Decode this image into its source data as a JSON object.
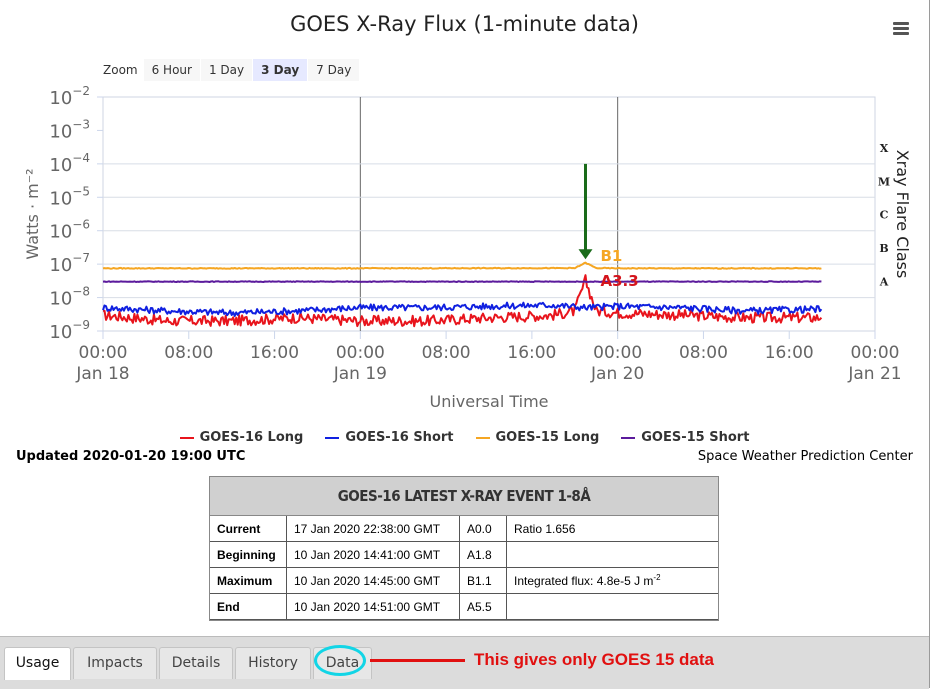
{
  "window": {
    "title": "GOES X-Ray Flux (1-minute data)"
  },
  "zoom": {
    "label": "Zoom",
    "options": [
      "6 Hour",
      "1 Day",
      "3 Day",
      "7 Day"
    ],
    "selected": "3 Day"
  },
  "chart_data": {
    "type": "line",
    "title": "GOES X-Ray Flux (1-minute data)",
    "xlabel": "Universal Time",
    "ylabel": "Watts · m⁻²",
    "ylabel_right": "Xray Flare Class",
    "y_scale": "log",
    "ylim": [
      1e-09,
      0.01
    ],
    "y_ticks": [
      {
        "base": "10",
        "exp": "−2"
      },
      {
        "base": "10",
        "exp": "−3"
      },
      {
        "base": "10",
        "exp": "−4"
      },
      {
        "base": "10",
        "exp": "−5"
      },
      {
        "base": "10",
        "exp": "−6"
      },
      {
        "base": "10",
        "exp": "−7"
      },
      {
        "base": "10",
        "exp": "−8"
      },
      {
        "base": "10",
        "exp": "−9"
      }
    ],
    "xlim": [
      "2020-01-18 00:00",
      "2020-01-21 00:00"
    ],
    "x_ticks": [
      {
        "time": "00:00",
        "date": "Jan 18"
      },
      {
        "time": "08:00",
        "date": ""
      },
      {
        "time": "16:00",
        "date": ""
      },
      {
        "time": "00:00",
        "date": "Jan 19"
      },
      {
        "time": "08:00",
        "date": ""
      },
      {
        "time": "16:00",
        "date": ""
      },
      {
        "time": "00:00",
        "date": "Jan 20"
      },
      {
        "time": "08:00",
        "date": ""
      },
      {
        "time": "16:00",
        "date": ""
      },
      {
        "time": "00:00",
        "date": "Jan 21"
      }
    ],
    "flare_classes": [
      "X",
      "M",
      "C",
      "B",
      "A"
    ],
    "grid": "day boundaries and flare class levels",
    "legend_position": "bottom",
    "data_end": "2020-01-20 19:00",
    "series": [
      {
        "name": "GOES-16 Long",
        "color": "#e8141c",
        "x": [
          "2020-01-18 00:00",
          "2020-01-18 06:00",
          "2020-01-18 12:00",
          "2020-01-18 18:00",
          "2020-01-19 00:00",
          "2020-01-19 06:00",
          "2020-01-19 12:00",
          "2020-01-19 18:00",
          "2020-01-19 20:00",
          "2020-01-19 21:00",
          "2020-01-19 22:00",
          "2020-01-20 00:00",
          "2020-01-20 06:00",
          "2020-01-20 12:00",
          "2020-01-20 19:00"
        ],
        "values": [
          3e-09,
          2e-09,
          2e-09,
          2.5e-09,
          2e-09,
          2e-09,
          2.5e-09,
          3e-09,
          4e-09,
          3.3e-08,
          4e-09,
          3.5e-09,
          3e-09,
          2.5e-09,
          2.5e-09
        ]
      },
      {
        "name": "GOES-16 Short",
        "color": "#1020e0",
        "x": [
          "2020-01-18 00:00",
          "2020-01-18 06:00",
          "2020-01-18 12:00",
          "2020-01-18 18:00",
          "2020-01-19 00:00",
          "2020-01-19 06:00",
          "2020-01-19 12:00",
          "2020-01-19 18:00",
          "2020-01-19 21:00",
          "2020-01-20 00:00",
          "2020-01-20 06:00",
          "2020-01-20 12:00",
          "2020-01-20 19:00"
        ],
        "values": [
          5e-09,
          4e-09,
          3.5e-09,
          4e-09,
          5e-09,
          5e-09,
          5.5e-09,
          6e-09,
          5e-09,
          5.5e-09,
          5e-09,
          4e-09,
          4.5e-09
        ]
      },
      {
        "name": "GOES-15 Long",
        "color": "#f5a623",
        "x": [
          "2020-01-18 00:00",
          "2020-01-19 00:00",
          "2020-01-19 20:00",
          "2020-01-19 21:00",
          "2020-01-19 22:00",
          "2020-01-20 00:00",
          "2020-01-20 19:00"
        ],
        "values": [
          7.5e-08,
          7.5e-08,
          7.6e-08,
          1.1e-07,
          7.6e-08,
          7.5e-08,
          7.5e-08
        ]
      },
      {
        "name": "GOES-15 Short",
        "color": "#5b1a9c",
        "x": [
          "2020-01-18 00:00",
          "2020-01-20 19:00"
        ],
        "values": [
          3e-08,
          3e-08
        ]
      }
    ],
    "annotations": [
      {
        "label": "B1",
        "color": "#f5a623",
        "x": "2020-01-19 21:00",
        "y": 1.1e-07
      },
      {
        "label": "A3.3",
        "color": "#d4141c",
        "x": "2020-01-19 21:00",
        "y": 3.3e-08
      }
    ],
    "arrow": {
      "color": "#1a6b1a",
      "x": "2020-01-19 21:00",
      "y_from": 0.0001,
      "y_to": 1.4e-07
    }
  },
  "status": {
    "updated": "Updated 2020-01-20 19:00 UTC",
    "credit": "Space Weather Prediction Center"
  },
  "event": {
    "title": "GOES-16 LATEST X-RAY EVENT 1-8Å",
    "rows": [
      {
        "label": "Current",
        "time": "17 Jan 2020 22:38:00 GMT",
        "class": "A0.0",
        "note": "Ratio 1.656",
        "note_sup": ""
      },
      {
        "label": "Beginning",
        "time": "10 Jan 2020 14:41:00 GMT",
        "class": "A1.8",
        "note": "",
        "note_sup": ""
      },
      {
        "label": "Maximum",
        "time": "10 Jan 2020 14:45:00 GMT",
        "class": "B1.1",
        "note": "Integrated flux: 4.8e-5 J m",
        "note_sup": "-2"
      },
      {
        "label": "End",
        "time": "10 Jan 2020 14:51:00 GMT",
        "class": "A5.5",
        "note": "",
        "note_sup": ""
      }
    ]
  },
  "tabs": [
    {
      "label": "Usage",
      "active": true
    },
    {
      "label": "Impacts",
      "active": false
    },
    {
      "label": "Details",
      "active": false
    },
    {
      "label": "History",
      "active": false
    },
    {
      "label": "Data",
      "active": false
    }
  ],
  "callout": {
    "text": "This gives only GOES 15 data",
    "color": "#e11010",
    "circle_color": "#12d5e6"
  }
}
